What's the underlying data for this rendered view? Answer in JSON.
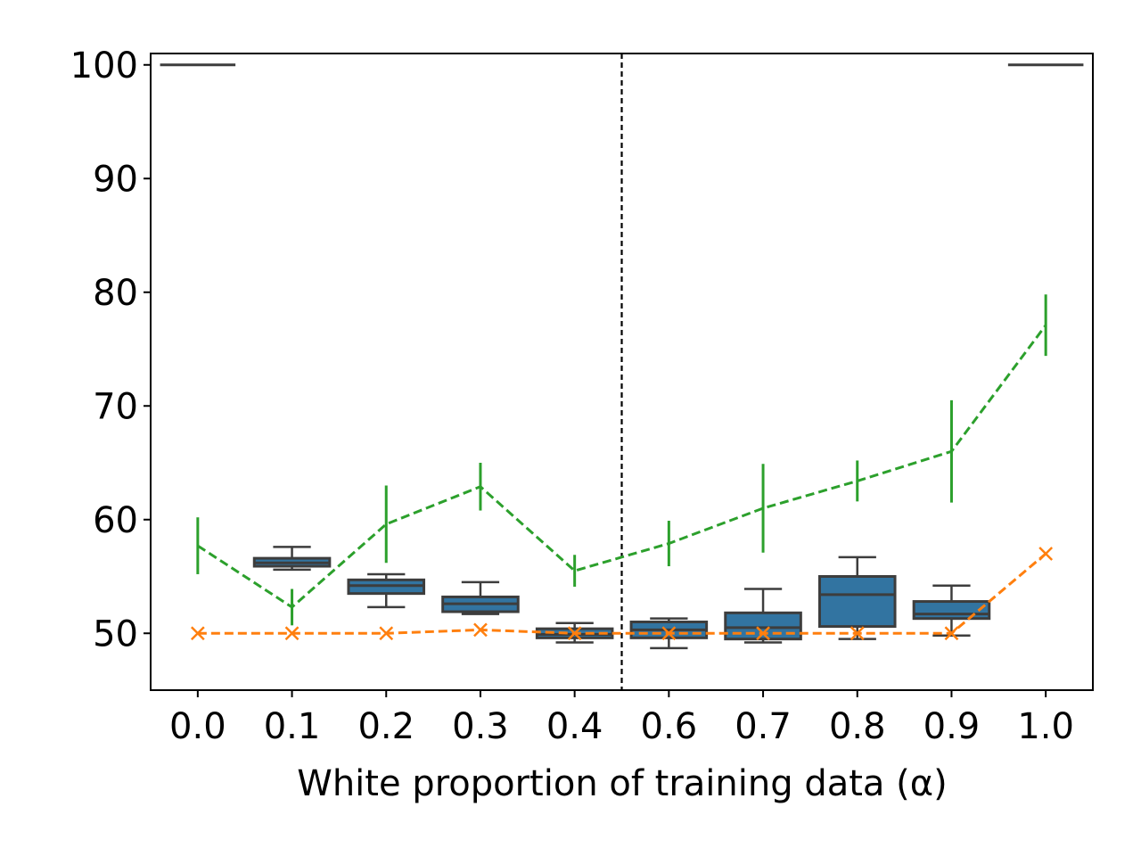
{
  "chart_data": {
    "type": "box",
    "xlabel": "White proportion of training data (α)",
    "ylabel": "",
    "ylim": [
      45,
      101
    ],
    "yticks": [
      50,
      60,
      70,
      80,
      90,
      100
    ],
    "categories": [
      "0.0",
      "0.1",
      "0.2",
      "0.3",
      "0.4",
      "0.6",
      "0.7",
      "0.8",
      "0.9",
      "1.0"
    ],
    "divider_after_category": "0.4",
    "grid": false,
    "legend": "none",
    "boxes": [
      {
        "category": "0.0",
        "whisker_low": 100,
        "q1": 100,
        "median": 100,
        "q3": 100,
        "whisker_high": 100
      },
      {
        "category": "0.1",
        "whisker_low": 55.6,
        "q1": 55.9,
        "median": 56.2,
        "q3": 56.6,
        "whisker_high": 57.6
      },
      {
        "category": "0.2",
        "whisker_low": 52.3,
        "q1": 53.5,
        "median": 54.2,
        "q3": 54.7,
        "whisker_high": 55.2
      },
      {
        "category": "0.3",
        "whisker_low": 51.7,
        "q1": 51.9,
        "median": 52.6,
        "q3": 53.2,
        "whisker_high": 54.5
      },
      {
        "category": "0.4",
        "whisker_low": 49.2,
        "q1": 49.6,
        "median": 49.9,
        "q3": 50.4,
        "whisker_high": 50.9
      },
      {
        "category": "0.6",
        "whisker_low": 48.7,
        "q1": 49.6,
        "median": 50.3,
        "q3": 51.0,
        "whisker_high": 51.3
      },
      {
        "category": "0.7",
        "whisker_low": 49.2,
        "q1": 49.5,
        "median": 50.5,
        "q3": 51.8,
        "whisker_high": 53.9
      },
      {
        "category": "0.8",
        "whisker_low": 49.5,
        "q1": 50.6,
        "median": 53.4,
        "q3": 55.0,
        "whisker_high": 56.7
      },
      {
        "category": "0.9",
        "whisker_low": 49.8,
        "q1": 51.3,
        "median": 51.7,
        "q3": 52.8,
        "whisker_high": 54.2
      },
      {
        "category": "1.0",
        "whisker_low": 100,
        "q1": 100,
        "median": 100,
        "q3": 100,
        "whisker_high": 100
      }
    ],
    "series": [
      {
        "type": "line-errorbar",
        "values": [
          57.7,
          52.3,
          59.6,
          62.9,
          55.5,
          57.9,
          61.0,
          63.4,
          66.0,
          77.1
        ],
        "errors": [
          2.5,
          1.6,
          3.4,
          2.1,
          1.4,
          2.0,
          3.9,
          1.8,
          4.5,
          2.7
        ],
        "color": "#2ca02c",
        "marker": "none",
        "dash": true
      },
      {
        "type": "line",
        "values": [
          50.0,
          50.0,
          50.0,
          50.3,
          50.0,
          50.0,
          50.0,
          50.0,
          50.0,
          57.0
        ],
        "color": "#ff7f0e",
        "marker": "x",
        "dash": true
      }
    ],
    "box_fill": "#3274a1",
    "box_edge": "#3d3d3d"
  }
}
